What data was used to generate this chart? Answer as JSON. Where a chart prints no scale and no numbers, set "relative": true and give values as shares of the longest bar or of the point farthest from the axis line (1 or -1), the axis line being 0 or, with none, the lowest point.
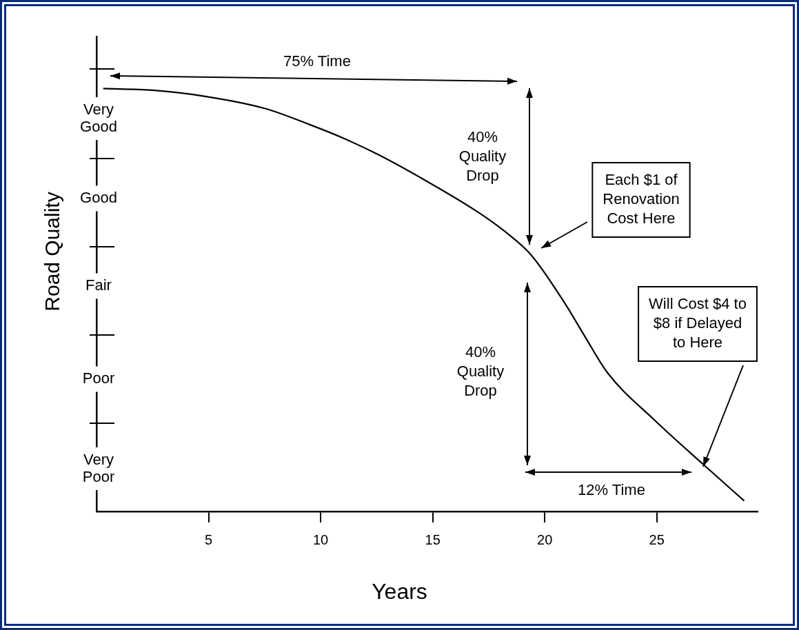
{
  "chart_data": {
    "type": "line",
    "xlabel": "Years",
    "ylabel": "Road Quality",
    "relative": true,
    "xlim": [
      0,
      29.5
    ],
    "xticks": [
      5,
      10,
      15,
      20,
      25
    ],
    "series": [
      {
        "color": "#000000",
        "x": [
          0.3,
          2.5,
          4.9,
          7.5,
          9.5,
          11,
          12.6,
          14.5,
          16.9,
          18.2,
          19.4,
          20.9,
          21.8,
          22.8,
          24.9,
          27.1,
          28.9
        ],
        "values": [
          1,
          0.996,
          0.981,
          0.953,
          0.915,
          0.883,
          0.843,
          0.788,
          0.712,
          0.663,
          0.606,
          0.492,
          0.413,
          0.328,
          0.216,
          0.11,
          0.025
        ]
      }
    ],
    "annotations": [
      "75% Time",
      "40%\nQuality\nDrop",
      "40%\nQuality\nDrop",
      "12% Time",
      "Each $1 of\nRenovation\nCost Here",
      "Will Cost $4 to\n$8 if Delayed\nto Here",
      "Very\nGood",
      "Good",
      "Fair",
      "Poor",
      "Very\nPoor"
    ],
    "grid": false,
    "legend": false,
    "marker": "none",
    "line_style": "solid"
  }
}
